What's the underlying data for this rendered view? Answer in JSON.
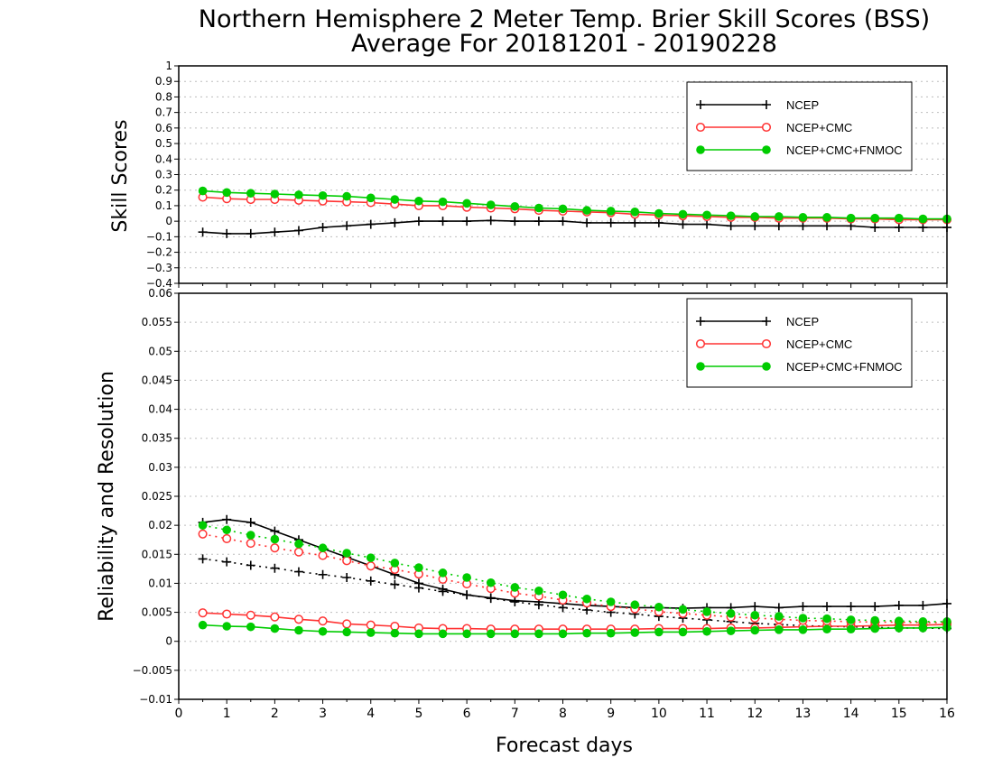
{
  "title_line1": "Northern Hemisphere 2 Meter Temp. Brier Skill Scores (BSS)",
  "title_line2": "Average For 20181201 - 20190228",
  "colors": {
    "ncep": "#000000",
    "ncep_cmc": "#ff3333",
    "ncep_cmc_fnmoc": "#00cc00"
  },
  "chart_data": [
    {
      "type": "line",
      "title": "Northern Hemisphere 2 Meter Temp. Brier Skill Scores (BSS)",
      "xlabel": "Forecast days",
      "ylabel": "Skill Scores",
      "xlim": [
        0,
        16
      ],
      "ylim": [
        -0.4,
        1
      ],
      "xticks": [
        "0",
        "1",
        "2",
        "3",
        "4",
        "5",
        "6",
        "7",
        "8",
        "9",
        "10",
        "11",
        "12",
        "13",
        "14",
        "15",
        "16"
      ],
      "yticks": [
        "−0.4",
        "−0.3",
        "−0.2",
        "−0.1",
        "0",
        "0.1",
        "0.2",
        "0.3",
        "0.4",
        "0.5",
        "0.6",
        "0.7",
        "0.8",
        "0.9",
        "1"
      ],
      "grid": true,
      "legend_position": "top-right",
      "legend": [
        "NCEP",
        "NCEP+CMC",
        "NCEP+CMC+FNMOC"
      ],
      "x": [
        0.5,
        1,
        1.5,
        2,
        2.5,
        3,
        3.5,
        4,
        4.5,
        5,
        5.5,
        6,
        6.5,
        7,
        7.5,
        8,
        8.5,
        9,
        9.5,
        10,
        10.5,
        11,
        11.5,
        12,
        12.5,
        13,
        13.5,
        14,
        14.5,
        15,
        15.5,
        16
      ],
      "series": [
        {
          "name": "NCEP",
          "marker": "plus",
          "style": "solid",
          "values": [
            -0.07,
            -0.08,
            -0.08,
            -0.07,
            -0.06,
            -0.04,
            -0.03,
            -0.02,
            -0.01,
            0,
            0,
            0,
            0.005,
            0,
            0,
            0,
            -0.01,
            -0.01,
            -0.01,
            -0.01,
            -0.02,
            -0.02,
            -0.03,
            -0.03,
            -0.03,
            -0.03,
            -0.03,
            -0.03,
            -0.04,
            -0.04,
            -0.04,
            -0.04
          ]
        },
        {
          "name": "NCEP+CMC",
          "marker": "open-circle",
          "style": "solid",
          "values": [
            0.155,
            0.145,
            0.14,
            0.14,
            0.135,
            0.13,
            0.125,
            0.12,
            0.11,
            0.1,
            0.1,
            0.09,
            0.085,
            0.08,
            0.07,
            0.065,
            0.06,
            0.055,
            0.045,
            0.04,
            0.035,
            0.03,
            0.025,
            0.025,
            0.02,
            0.02,
            0.02,
            0.015,
            0.015,
            0.01,
            0.01,
            0.01
          ]
        },
        {
          "name": "NCEP+CMC+FNMOC",
          "marker": "filled-circle",
          "style": "solid",
          "values": [
            0.195,
            0.185,
            0.18,
            0.175,
            0.17,
            0.165,
            0.16,
            0.15,
            0.14,
            0.13,
            0.125,
            0.115,
            0.105,
            0.095,
            0.085,
            0.08,
            0.07,
            0.065,
            0.06,
            0.05,
            0.045,
            0.04,
            0.035,
            0.03,
            0.03,
            0.025,
            0.025,
            0.02,
            0.02,
            0.02,
            0.015,
            0.015
          ]
        }
      ]
    },
    {
      "type": "line",
      "xlabel": "Forecast days",
      "ylabel": "Reliability and Resolution",
      "xlim": [
        0,
        16
      ],
      "ylim": [
        -0.01,
        0.06
      ],
      "xticks": [
        "0",
        "1",
        "2",
        "3",
        "4",
        "5",
        "6",
        "7",
        "8",
        "9",
        "10",
        "11",
        "12",
        "13",
        "14",
        "15",
        "16"
      ],
      "yticks": [
        "−0.01",
        "−0.005",
        "0",
        "0.005",
        "0.01",
        "0.015",
        "0.02",
        "0.025",
        "0.03",
        "0.035",
        "0.04",
        "0.045",
        "0.05",
        "0.055",
        "0.06"
      ],
      "grid": true,
      "legend_position": "top-right",
      "legend": [
        "NCEP",
        "NCEP+CMC",
        "NCEP+CMC+FNMOC"
      ],
      "x": [
        0.5,
        1,
        1.5,
        2,
        2.5,
        3,
        3.5,
        4,
        4.5,
        5,
        5.5,
        6,
        6.5,
        7,
        7.5,
        8,
        8.5,
        9,
        9.5,
        10,
        10.5,
        11,
        11.5,
        12,
        12.5,
        13,
        13.5,
        14,
        14.5,
        15,
        15.5,
        16
      ],
      "series": [
        {
          "name": "NCEP",
          "marker": "plus",
          "style": "solid",
          "values": [
            0.0205,
            0.021,
            0.0205,
            0.019,
            0.0175,
            0.016,
            0.0145,
            0.013,
            0.0115,
            0.01,
            0.009,
            0.008,
            0.0075,
            0.007,
            0.0068,
            0.0065,
            0.0062,
            0.006,
            0.0058,
            0.0058,
            0.0057,
            0.0058,
            0.0058,
            0.006,
            0.0058,
            0.006,
            0.006,
            0.006,
            0.006,
            0.0062,
            0.0062,
            0.0065
          ]
        },
        {
          "name": "NCEP",
          "marker": "plus",
          "style": "dotted",
          "values": [
            0.0142,
            0.0137,
            0.0131,
            0.0126,
            0.012,
            0.0115,
            0.011,
            0.0104,
            0.0098,
            0.0092,
            0.0086,
            0.008,
            0.0074,
            0.0068,
            0.0063,
            0.0058,
            0.0054,
            0.005,
            0.0047,
            0.0043,
            0.004,
            0.0037,
            0.0034,
            0.0031,
            0.0029,
            0.0027,
            0.0026,
            0.0025,
            0.0024,
            0.0023,
            0.0023,
            0.0022
          ]
        },
        {
          "name": "NCEP+CMC",
          "marker": "open-circle",
          "style": "solid",
          "values": [
            0.0049,
            0.0047,
            0.0045,
            0.0042,
            0.0038,
            0.0035,
            0.003,
            0.0028,
            0.0026,
            0.0023,
            0.0022,
            0.0022,
            0.0021,
            0.0021,
            0.0021,
            0.0021,
            0.0021,
            0.0021,
            0.0021,
            0.0022,
            0.0022,
            0.0022,
            0.0023,
            0.0023,
            0.0024,
            0.0025,
            0.0026,
            0.0026,
            0.0027,
            0.0028,
            0.0028,
            0.0029
          ]
        },
        {
          "name": "NCEP+CMC",
          "marker": "open-circle",
          "style": "dotted",
          "values": [
            0.0185,
            0.0177,
            0.0169,
            0.0161,
            0.0154,
            0.0148,
            0.0139,
            0.013,
            0.0124,
            0.0116,
            0.0107,
            0.0099,
            0.0091,
            0.0083,
            0.0078,
            0.0071,
            0.0066,
            0.006,
            0.0056,
            0.0051,
            0.0048,
            0.0045,
            0.0042,
            0.004,
            0.0038,
            0.0036,
            0.0035,
            0.0034,
            0.0033,
            0.0033,
            0.0032,
            0.0032
          ]
        },
        {
          "name": "NCEP+CMC+FNMOC",
          "marker": "filled-circle",
          "style": "solid",
          "values": [
            0.0028,
            0.0026,
            0.0025,
            0.0022,
            0.0019,
            0.0017,
            0.0016,
            0.0015,
            0.0014,
            0.0013,
            0.0013,
            0.0013,
            0.0013,
            0.0013,
            0.0013,
            0.0013,
            0.0014,
            0.0014,
            0.0015,
            0.0016,
            0.0016,
            0.0017,
            0.0018,
            0.0019,
            0.002,
            0.002,
            0.0021,
            0.0021,
            0.0022,
            0.0023,
            0.0023,
            0.0024
          ]
        },
        {
          "name": "NCEP+CMC+FNMOC",
          "marker": "filled-circle",
          "style": "dotted",
          "values": [
            0.02,
            0.0192,
            0.0183,
            0.0176,
            0.0168,
            0.0161,
            0.0152,
            0.0144,
            0.0135,
            0.0127,
            0.0118,
            0.011,
            0.0101,
            0.0093,
            0.0087,
            0.008,
            0.0073,
            0.0068,
            0.0063,
            0.0059,
            0.0055,
            0.0051,
            0.0048,
            0.0045,
            0.0043,
            0.004,
            0.0039,
            0.0037,
            0.0036,
            0.0035,
            0.0034,
            0.0034
          ]
        }
      ]
    }
  ]
}
